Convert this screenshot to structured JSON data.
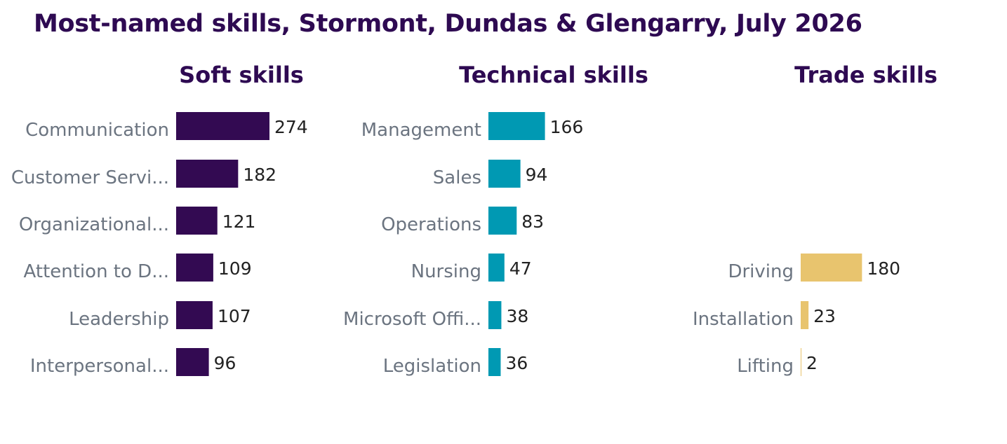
{
  "title": "Most-named skills, Stormont, Dundas & Glengarry, July 2026",
  "chart_data": [
    {
      "type": "bar",
      "orientation": "horizontal",
      "title": "Soft skills",
      "color": "#330a52",
      "categories": [
        "Communication",
        "Customer Servi...",
        "Organizational...",
        "Attention to D...",
        "Leadership",
        "Interpersonal..."
      ],
      "values": [
        274,
        182,
        121,
        109,
        107,
        96
      ]
    },
    {
      "type": "bar",
      "orientation": "horizontal",
      "title": "Technical skills",
      "color": "#0099b3",
      "categories": [
        "Management",
        "Sales",
        "Operations",
        "Nursing",
        "Microsoft Offi...",
        "Legislation"
      ],
      "values": [
        166,
        94,
        83,
        47,
        38,
        36
      ]
    },
    {
      "type": "bar",
      "orientation": "horizontal",
      "title": "Trade skills",
      "color": "#e8c46e",
      "categories": [
        "Driving",
        "Installation",
        "Lifting"
      ],
      "values": [
        180,
        23,
        2
      ]
    }
  ]
}
